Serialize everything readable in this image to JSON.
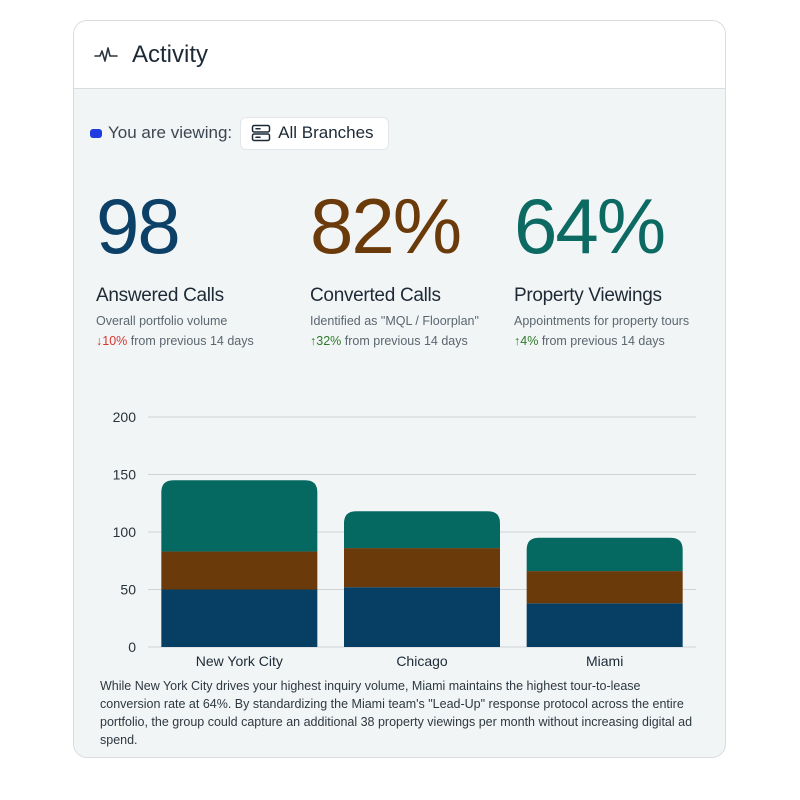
{
  "header": {
    "title": "Activity",
    "icon": "pulse-icon"
  },
  "viewing": {
    "label": "You are viewing:",
    "selected": "All Branches",
    "dot_color": "#1d3be0"
  },
  "stats": [
    {
      "value": "98",
      "title": "Answered Calls",
      "subtitle": "Overall portfolio volume",
      "arrow": "↓",
      "pct": "10%",
      "delta_text": "from previous 14 days",
      "color": "#0d4066",
      "direction": "down"
    },
    {
      "value": "82%",
      "title": "Converted Calls",
      "subtitle": "Identified as \"MQL / Floorplan\"",
      "arrow": "↑",
      "pct": "32%",
      "delta_text": "from previous 14 days",
      "color": "#6b3a0a",
      "direction": "up"
    },
    {
      "value": "64%",
      "title": "Property Viewings",
      "subtitle": "Appointments for property tours",
      "arrow": "↑",
      "pct": "4%",
      "delta_text": "from previous 14 days",
      "color": "#0c6a63",
      "direction": "up"
    }
  ],
  "chart_data": {
    "type": "bar",
    "stacked": true,
    "categories": [
      "New York City",
      "Chicago",
      "Miami"
    ],
    "series": [
      {
        "values": [
          50,
          52,
          38
        ],
        "color": "#063f63"
      },
      {
        "values": [
          33,
          34,
          28
        ],
        "color": "#6b3a0a"
      },
      {
        "values": [
          62,
          32,
          29
        ],
        "color": "#066961"
      }
    ],
    "ylim": [
      0,
      200
    ],
    "yticks": [
      0,
      50,
      100,
      150,
      200
    ],
    "grid": true
  },
  "summary": "While New York City drives your highest inquiry volume, Miami maintains the highest tour-to-lease conversion rate at 64%. By standardizing the Miami team's \"Lead-Up\" response protocol across the entire portfolio, the group could capture an additional 38 property viewings per month without increasing digital ad spend."
}
